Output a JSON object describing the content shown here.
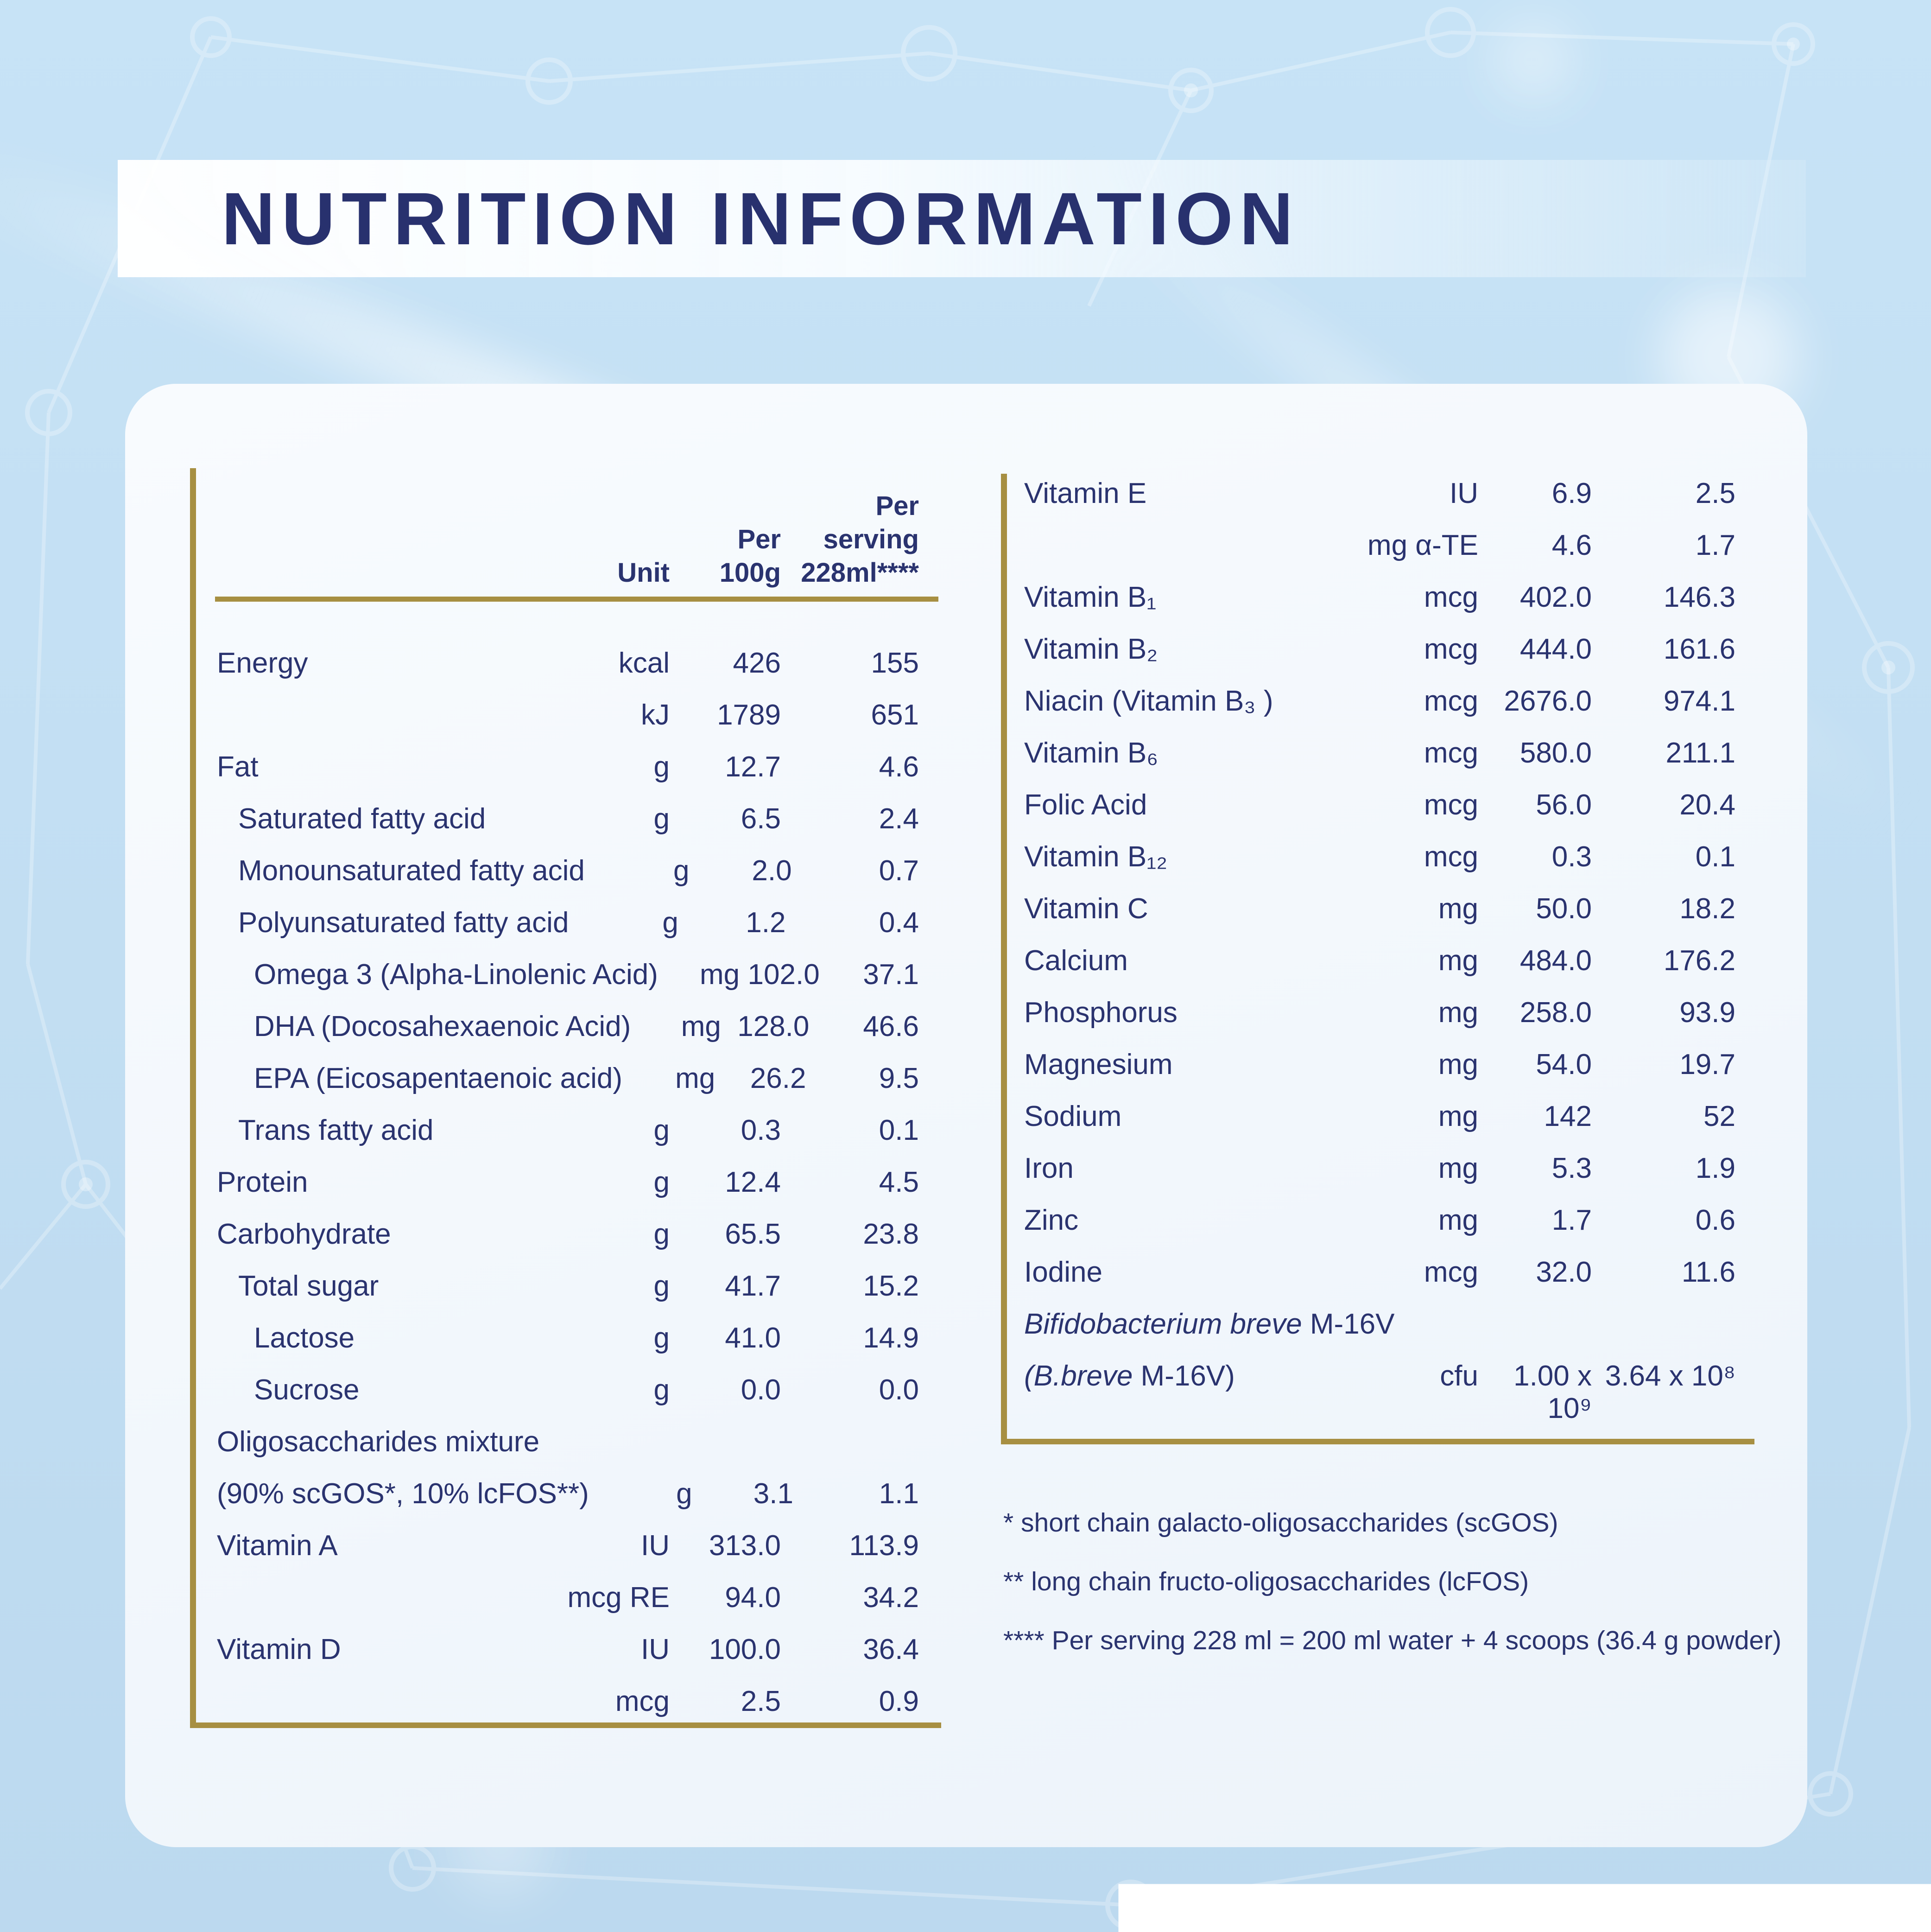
{
  "title": "NUTRITION INFORMATION",
  "colors": {
    "navy": "#2A336F",
    "gold": "#A78F42",
    "background_blue": "#C4E0F4",
    "card": "#F3F7FC",
    "banner": "#FFFFFF"
  },
  "table_left": {
    "header": {
      "unit_lines": [
        "Unit"
      ],
      "per100_lines": [
        "Per",
        "100g"
      ],
      "serving_lines": [
        "Per",
        "serving",
        "228ml****"
      ]
    },
    "rows": [
      {
        "label": "Energy",
        "indent": 0,
        "unit": "kcal",
        "per100": "426",
        "serving": "155"
      },
      {
        "label": "",
        "indent": 0,
        "unit": "kJ",
        "per100": "1789",
        "serving": "651"
      },
      {
        "label": "Fat",
        "indent": 0,
        "unit": "g",
        "per100": "12.7",
        "serving": "4.6"
      },
      {
        "label": "Saturated fatty acid",
        "indent": 1,
        "unit": "g",
        "per100": "6.5",
        "serving": "2.4"
      },
      {
        "label": "Monounsaturated fatty acid",
        "indent": 1,
        "unit": "g",
        "per100": "2.0",
        "serving": "0.7"
      },
      {
        "label": "Polyunsaturated fatty acid",
        "indent": 1,
        "unit": "g",
        "per100": "1.2",
        "serving": "0.4"
      },
      {
        "label": "Omega 3 (Alpha-Linolenic Acid)",
        "indent": 2,
        "unit": "mg",
        "per100": "102.0",
        "serving": "37.1"
      },
      {
        "label": "DHA (Docosahexaenoic Acid)",
        "indent": 2,
        "unit": "mg",
        "per100": "128.0",
        "serving": "46.6"
      },
      {
        "label": "EPA (Eicosapentaenoic acid)",
        "indent": 2,
        "unit": "mg",
        "per100": "26.2",
        "serving": "9.5"
      },
      {
        "label": "Trans fatty acid",
        "indent": 1,
        "unit": "g",
        "per100": "0.3",
        "serving": "0.1"
      },
      {
        "label": "Protein",
        "indent": 0,
        "unit": "g",
        "per100": "12.4",
        "serving": "4.5"
      },
      {
        "label": "Carbohydrate",
        "indent": 0,
        "unit": "g",
        "per100": "65.5",
        "serving": "23.8"
      },
      {
        "label": "Total sugar",
        "indent": 1,
        "unit": "g",
        "per100": "41.7",
        "serving": "15.2"
      },
      {
        "label": "Lactose",
        "indent": 2,
        "unit": "g",
        "per100": "41.0",
        "serving": "14.9"
      },
      {
        "label": "Sucrose",
        "indent": 2,
        "unit": "g",
        "per100": "0.0",
        "serving": "0.0"
      },
      {
        "label": "Oligosaccharides mixture",
        "indent": 0,
        "unit": "",
        "per100": "",
        "serving": ""
      },
      {
        "label": "(90% scGOS*, 10% lcFOS**)",
        "indent": 0,
        "unit": "g",
        "per100": "3.1",
        "serving": "1.1"
      },
      {
        "label": "Vitamin A",
        "indent": 0,
        "unit": "IU",
        "per100": "313.0",
        "serving": "113.9"
      },
      {
        "label": "",
        "indent": 0,
        "unit": "mcg RE",
        "per100": "94.0",
        "serving": "34.2"
      },
      {
        "label": "Vitamin D",
        "indent": 0,
        "unit": "IU",
        "per100": "100.0",
        "serving": "36.4"
      },
      {
        "label": "",
        "indent": 0,
        "unit": "mcg",
        "per100": "2.5",
        "serving": "0.9"
      }
    ]
  },
  "table_right": {
    "rows": [
      {
        "label": "Vitamin E",
        "indent": 0,
        "unit": "IU",
        "per100": "6.9",
        "serving": "2.5"
      },
      {
        "label": "",
        "indent": 0,
        "unit": "mg α-TE",
        "per100": "4.6",
        "serving": "1.7"
      },
      {
        "label": "Vitamin B₁",
        "indent": 0,
        "unit": "mcg",
        "per100": "402.0",
        "serving": "146.3"
      },
      {
        "label": "Vitamin B₂",
        "indent": 0,
        "unit": "mcg",
        "per100": "444.0",
        "serving": "161.6"
      },
      {
        "label": "Niacin (Vitamin B₃ )",
        "indent": 0,
        "unit": "mcg",
        "per100": "2676.0",
        "serving": "974.1"
      },
      {
        "label": "Vitamin B₆",
        "indent": 0,
        "unit": "mcg",
        "per100": "580.0",
        "serving": "211.1"
      },
      {
        "label": "Folic Acid",
        "indent": 0,
        "unit": "mcg",
        "per100": "56.0",
        "serving": "20.4"
      },
      {
        "label": "Vitamin B₁₂",
        "indent": 0,
        "unit": "mcg",
        "per100": "0.3",
        "serving": "0.1"
      },
      {
        "label": "Vitamin C",
        "indent": 0,
        "unit": "mg",
        "per100": "50.0",
        "serving": "18.2"
      },
      {
        "label": "Calcium",
        "indent": 0,
        "unit": "mg",
        "per100": "484.0",
        "serving": "176.2"
      },
      {
        "label": "Phosphorus",
        "indent": 0,
        "unit": "mg",
        "per100": "258.0",
        "serving": "93.9"
      },
      {
        "label": "Magnesium",
        "indent": 0,
        "unit": "mg",
        "per100": "54.0",
        "serving": "19.7"
      },
      {
        "label": "Sodium",
        "indent": 0,
        "unit": "mg",
        "per100": "142",
        "serving": "52"
      },
      {
        "label": "Iron",
        "indent": 0,
        "unit": "mg",
        "per100": "5.3",
        "serving": "1.9"
      },
      {
        "label": "Zinc",
        "indent": 0,
        "unit": "mg",
        "per100": "1.7",
        "serving": "0.6"
      },
      {
        "label": "Iodine",
        "indent": 0,
        "unit": "mcg",
        "per100": "32.0",
        "serving": "11.6"
      },
      {
        "label": "Bifidobacterium breve",
        "suffix": " M-16V",
        "italic": true,
        "indent": 0,
        "unit": "",
        "per100": "",
        "serving": ""
      },
      {
        "label": "(B.breve",
        "suffix": " M-16V)",
        "italic": true,
        "indent": 0,
        "unit": "cfu",
        "per100": "1.00 x 10⁹",
        "serving": "3.64 x 10⁸"
      }
    ]
  },
  "footnotes": [
    "* short chain galacto-oligosaccharides (scGOS)",
    "** long chain fructo-oligosaccharides (lcFOS)",
    "**** Per serving 228 ml = 200 ml water + 4 scoops (36.4 g powder)"
  ]
}
